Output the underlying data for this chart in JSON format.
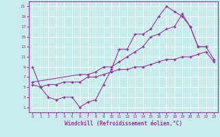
{
  "xlabel": "Windchill (Refroidissement éolien,°C)",
  "bg_color": "#c8ecec",
  "line_color": "#993399",
  "grid_color": "#ffffff",
  "xlim": [
    -0.5,
    23.5
  ],
  "ylim": [
    0,
    22
  ],
  "xticks": [
    0,
    1,
    2,
    3,
    4,
    5,
    6,
    7,
    8,
    9,
    10,
    11,
    12,
    13,
    14,
    15,
    16,
    17,
    18,
    19,
    20,
    21,
    22,
    23
  ],
  "yticks": [
    1,
    3,
    5,
    7,
    9,
    11,
    13,
    15,
    17,
    19,
    21
  ],
  "series": [
    {
      "x": [
        0,
        1,
        2,
        3,
        4,
        5,
        6,
        7,
        8,
        9,
        10,
        11,
        12,
        13,
        14,
        15,
        16,
        17,
        18,
        19,
        20,
        21,
        22
      ],
      "y": [
        9,
        5,
        3,
        2.5,
        3,
        3,
        1,
        2,
        2.5,
        5.5,
        8.5,
        12.5,
        12.5,
        15.5,
        15.5,
        16.5,
        19,
        21,
        20,
        19,
        17,
        13,
        13
      ]
    },
    {
      "x": [
        0,
        1,
        2,
        3,
        4,
        5,
        6,
        7,
        8,
        9,
        10,
        11,
        12,
        13,
        14,
        15,
        16,
        17,
        18,
        19,
        20,
        21,
        22,
        23
      ],
      "y": [
        5.5,
        5,
        5.5,
        5.5,
        6,
        6,
        6,
        7,
        7,
        7.5,
        8,
        8.5,
        8.5,
        9,
        9,
        9.5,
        10,
        10.5,
        10.5,
        11,
        11,
        11.5,
        12,
        10
      ]
    },
    {
      "x": [
        0,
        6,
        7,
        8,
        9,
        10,
        11,
        12,
        13,
        14,
        15,
        16,
        17,
        18,
        19,
        20,
        21,
        22,
        23
      ],
      "y": [
        6,
        7.5,
        7.5,
        8,
        9,
        9,
        10,
        11,
        12,
        13,
        15,
        15.5,
        16.5,
        17,
        19.5,
        17,
        13,
        13,
        10.5
      ]
    }
  ]
}
